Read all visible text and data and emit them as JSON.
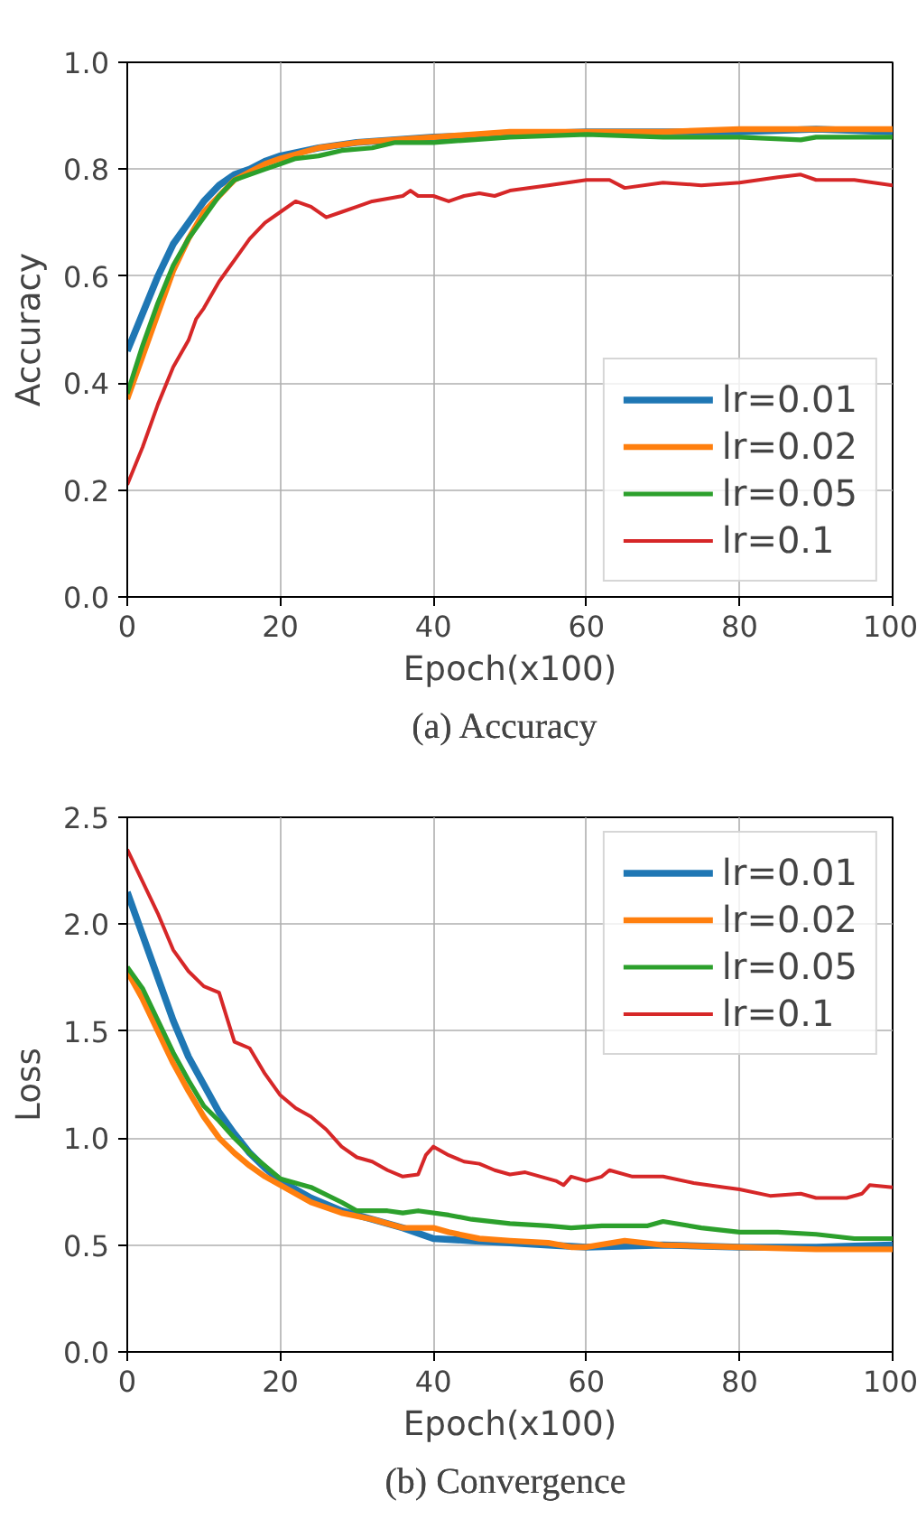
{
  "chart_data": [
    {
      "type": "line",
      "title": "(a)  Accuracy",
      "xlabel": "Epoch(x100)",
      "ylabel": "Accuracy",
      "xlim": [
        0,
        100
      ],
      "ylim": [
        0,
        1.0
      ],
      "xticks": [
        0,
        20,
        40,
        60,
        80,
        100
      ],
      "yticks": [
        {
          "value": 0,
          "label": "0.0"
        },
        0.2,
        0.4,
        0.6,
        0.8,
        {
          "value": 1,
          "label": "1.0"
        }
      ],
      "grid": true,
      "legend": "bottom right",
      "series": [
        {
          "name": "lr=0.01",
          "color": "#1f77b4",
          "x": [
            0,
            2,
            4,
            6,
            8,
            10,
            12,
            14,
            16,
            18,
            20,
            25,
            30,
            40,
            50,
            60,
            70,
            80,
            90,
            100
          ],
          "values": [
            0.46,
            0.53,
            0.6,
            0.66,
            0.7,
            0.74,
            0.77,
            0.79,
            0.8,
            0.815,
            0.825,
            0.84,
            0.85,
            0.86,
            0.865,
            0.87,
            0.87,
            0.87,
            0.875,
            0.87
          ]
        },
        {
          "name": "lr=0.02",
          "color": "#ff7f0e",
          "x": [
            0,
            2,
            4,
            6,
            8,
            10,
            12,
            14,
            16,
            18,
            20,
            25,
            30,
            40,
            50,
            60,
            70,
            80,
            90,
            100
          ],
          "values": [
            0.37,
            0.45,
            0.53,
            0.61,
            0.67,
            0.72,
            0.75,
            0.78,
            0.795,
            0.81,
            0.82,
            0.84,
            0.85,
            0.86,
            0.87,
            0.87,
            0.87,
            0.875,
            0.875,
            0.875
          ]
        },
        {
          "name": "lr=0.05",
          "color": "#2ca02c",
          "x": [
            0,
            2,
            4,
            6,
            8,
            10,
            12,
            14,
            16,
            18,
            20,
            22,
            25,
            28,
            32,
            35,
            40,
            45,
            50,
            60,
            70,
            80,
            88,
            90,
            100
          ],
          "values": [
            0.38,
            0.47,
            0.55,
            0.62,
            0.67,
            0.71,
            0.75,
            0.78,
            0.79,
            0.8,
            0.81,
            0.82,
            0.825,
            0.835,
            0.84,
            0.85,
            0.85,
            0.855,
            0.86,
            0.865,
            0.86,
            0.86,
            0.855,
            0.86,
            0.86
          ]
        },
        {
          "name": "lr=0.1",
          "color": "#d62728",
          "x": [
            0,
            2,
            4,
            6,
            8,
            9,
            10,
            12,
            14,
            16,
            18,
            20,
            22,
            24,
            26,
            28,
            30,
            32,
            34,
            36,
            37,
            38,
            40,
            42,
            44,
            46,
            48,
            50,
            55,
            60,
            63,
            65,
            70,
            75,
            80,
            85,
            88,
            90,
            95,
            100
          ],
          "values": [
            0.21,
            0.28,
            0.36,
            0.43,
            0.48,
            0.52,
            0.54,
            0.59,
            0.63,
            0.67,
            0.7,
            0.72,
            0.74,
            0.73,
            0.71,
            0.72,
            0.73,
            0.74,
            0.745,
            0.75,
            0.76,
            0.75,
            0.75,
            0.74,
            0.75,
            0.755,
            0.75,
            0.76,
            0.77,
            0.78,
            0.78,
            0.765,
            0.775,
            0.77,
            0.775,
            0.785,
            0.79,
            0.78,
            0.78,
            0.77
          ]
        }
      ]
    },
    {
      "type": "line",
      "title": "(b)  Convergence",
      "xlabel": "Epoch(x100)",
      "ylabel": "Loss",
      "xlim": [
        0,
        100
      ],
      "ylim": [
        0,
        2.5
      ],
      "xticks": [
        0,
        20,
        40,
        60,
        80,
        100
      ],
      "yticks": [
        {
          "value": 0,
          "label": "0.0"
        },
        0.5,
        {
          "value": 1,
          "label": "1.0"
        },
        1.5,
        {
          "value": 2,
          "label": "2.0"
        },
        2.5
      ],
      "grid": true,
      "legend": "top right",
      "series": [
        {
          "name": "lr=0.01",
          "color": "#1f77b4",
          "x": [
            0,
            2,
            4,
            6,
            8,
            10,
            12,
            14,
            16,
            18,
            20,
            24,
            28,
            32,
            36,
            40,
            45,
            50,
            55,
            60,
            70,
            80,
            90,
            100
          ],
          "values": [
            2.15,
            1.95,
            1.75,
            1.55,
            1.38,
            1.25,
            1.12,
            1.02,
            0.93,
            0.86,
            0.8,
            0.72,
            0.66,
            0.62,
            0.58,
            0.53,
            0.52,
            0.51,
            0.5,
            0.49,
            0.5,
            0.49,
            0.49,
            0.5
          ]
        },
        {
          "name": "lr=0.02",
          "color": "#ff7f0e",
          "x": [
            0,
            2,
            4,
            6,
            8,
            10,
            12,
            14,
            16,
            18,
            20,
            24,
            28,
            32,
            36,
            40,
            42,
            46,
            50,
            55,
            58,
            60,
            65,
            70,
            80,
            90,
            100
          ],
          "values": [
            1.78,
            1.65,
            1.5,
            1.35,
            1.22,
            1.1,
            1.0,
            0.93,
            0.87,
            0.82,
            0.78,
            0.7,
            0.65,
            0.62,
            0.58,
            0.58,
            0.56,
            0.53,
            0.52,
            0.51,
            0.49,
            0.49,
            0.52,
            0.5,
            0.49,
            0.48,
            0.48
          ]
        },
        {
          "name": "lr=0.05",
          "color": "#2ca02c",
          "x": [
            0,
            2,
            4,
            6,
            8,
            10,
            12,
            14,
            16,
            18,
            20,
            24,
            28,
            30,
            34,
            36,
            38,
            42,
            45,
            50,
            55,
            58,
            62,
            68,
            70,
            75,
            80,
            85,
            90,
            95,
            100
          ],
          "values": [
            1.8,
            1.7,
            1.55,
            1.4,
            1.27,
            1.15,
            1.08,
            1.0,
            0.93,
            0.87,
            0.81,
            0.77,
            0.7,
            0.66,
            0.66,
            0.65,
            0.66,
            0.64,
            0.62,
            0.6,
            0.59,
            0.58,
            0.59,
            0.59,
            0.61,
            0.58,
            0.56,
            0.56,
            0.55,
            0.53,
            0.53
          ]
        },
        {
          "name": "lr=0.1",
          "color": "#d62728",
          "x": [
            0,
            2,
            4,
            6,
            8,
            10,
            12,
            14,
            16,
            18,
            20,
            22,
            24,
            26,
            28,
            30,
            32,
            34,
            36,
            38,
            39,
            40,
            42,
            44,
            46,
            48,
            50,
            52,
            56,
            57,
            58,
            60,
            62,
            63,
            66,
            70,
            74,
            78,
            80,
            84,
            88,
            90,
            94,
            96,
            97,
            100
          ],
          "values": [
            2.35,
            2.2,
            2.05,
            1.88,
            1.78,
            1.71,
            1.68,
            1.45,
            1.42,
            1.3,
            1.2,
            1.14,
            1.1,
            1.04,
            0.96,
            0.91,
            0.89,
            0.85,
            0.82,
            0.83,
            0.92,
            0.96,
            0.92,
            0.89,
            0.88,
            0.85,
            0.83,
            0.84,
            0.8,
            0.78,
            0.82,
            0.8,
            0.82,
            0.85,
            0.82,
            0.82,
            0.79,
            0.77,
            0.76,
            0.73,
            0.74,
            0.72,
            0.72,
            0.74,
            0.78,
            0.77
          ]
        }
      ]
    }
  ]
}
